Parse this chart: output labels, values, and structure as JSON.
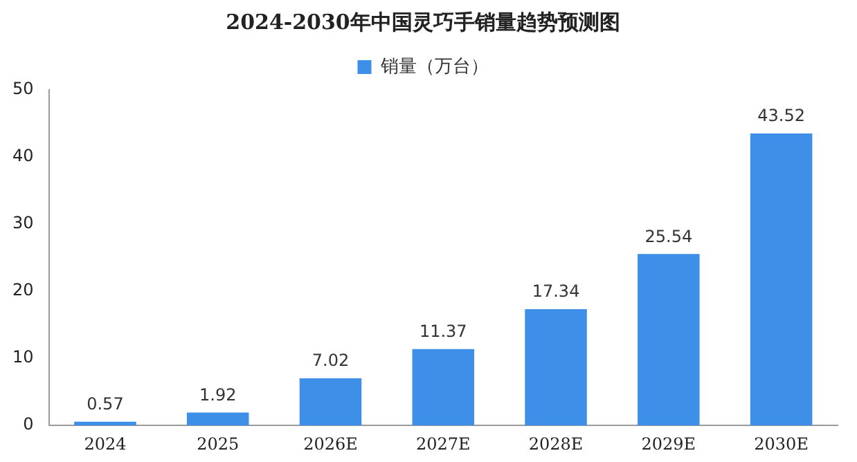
{
  "chart_data": {
    "type": "bar",
    "title": "2024-2030年中国灵巧手销量趋势预测图",
    "categories": [
      "2024",
      "2025",
      "2026E",
      "2027E",
      "2028E",
      "2029E",
      "2030E"
    ],
    "series": [
      {
        "name": "销量（万台）",
        "color": "#3d8fe8",
        "values": [
          0.57,
          1.92,
          7.02,
          11.37,
          17.34,
          25.54,
          43.52
        ]
      }
    ],
    "ylim": [
      0,
      50
    ],
    "yticks": [
      0,
      10,
      20,
      30,
      40,
      50
    ],
    "grid": false,
    "legend": "top",
    "data_labels": true
  }
}
